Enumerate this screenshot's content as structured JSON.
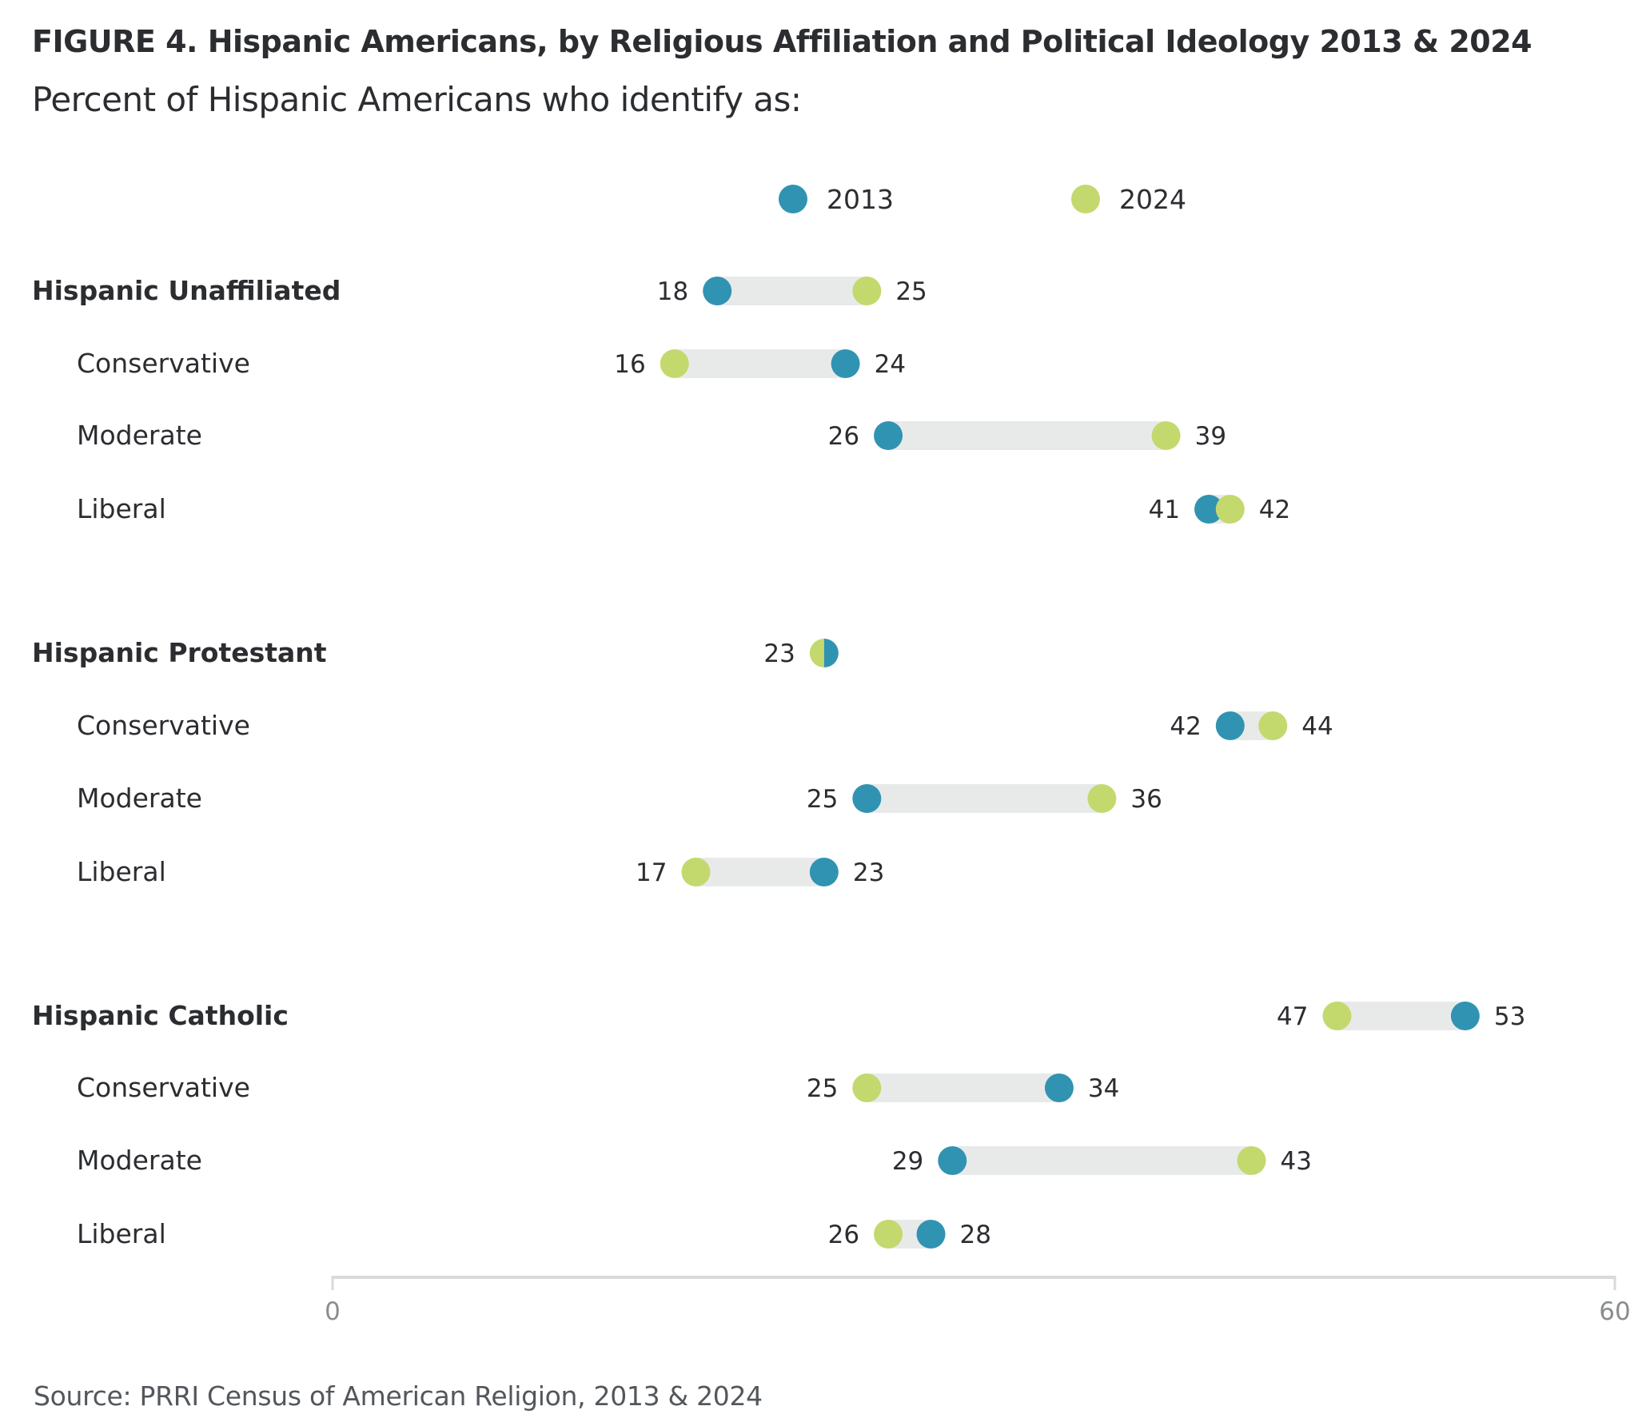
{
  "title": "FIGURE 4. Hispanic Americans, by Religious Affiliation and Political Ideology 2013 & 2024",
  "subtitle": "Percent of Hispanic Americans who identify as:",
  "source": "Source: PRRI Census of American Religion, 2013 & 2024",
  "colors": {
    "2013": "#3193b2",
    "2024": "#c3d96d",
    "connector": "#e8eaea",
    "axis": "#d8d9da"
  },
  "chart_data": {
    "type": "dumbbell",
    "title": "FIGURE 4. Hispanic Americans, by Religious Affiliation and Political Ideology 2013 & 2024",
    "subtitle": "Percent of Hispanic Americans who identify as:",
    "xlabel": "",
    "ylabel": "",
    "xlim": [
      0,
      60
    ],
    "x_ticks": [
      "0",
      "60"
    ],
    "grid": false,
    "legend": {
      "placement": "top-center",
      "entries": [
        {
          "name": "2013",
          "color": "#3193b2"
        },
        {
          "name": "2024",
          "color": "#c3d96d"
        }
      ]
    },
    "series": [
      {
        "name": "2013"
      },
      {
        "name": "2024"
      }
    ],
    "rows": [
      {
        "label": "Hispanic Unaffiliated",
        "type": "group",
        "v2013": 18,
        "v2024": 25
      },
      {
        "label": "Conservative",
        "type": "sub",
        "v2013": 24,
        "v2024": 16
      },
      {
        "label": "Moderate",
        "type": "sub",
        "v2013": 26,
        "v2024": 39
      },
      {
        "label": "Liberal",
        "type": "sub",
        "v2013": 41,
        "v2024": 42
      },
      {
        "label": "Hispanic Protestant",
        "type": "group",
        "v2013": 23,
        "v2024": 23
      },
      {
        "label": "Conservative",
        "type": "sub",
        "v2013": 42,
        "v2024": 44
      },
      {
        "label": "Moderate",
        "type": "sub",
        "v2013": 25,
        "v2024": 36
      },
      {
        "label": "Liberal",
        "type": "sub",
        "v2013": 23,
        "v2024": 17
      },
      {
        "label": "Hispanic Catholic",
        "type": "group",
        "v2013": 53,
        "v2024": 47
      },
      {
        "label": "Conservative",
        "type": "sub",
        "v2013": 34,
        "v2024": 25
      },
      {
        "label": "Moderate",
        "type": "sub",
        "v2013": 29,
        "v2024": 43
      },
      {
        "label": "Liberal",
        "type": "sub",
        "v2013": 28,
        "v2024": 26
      }
    ]
  }
}
